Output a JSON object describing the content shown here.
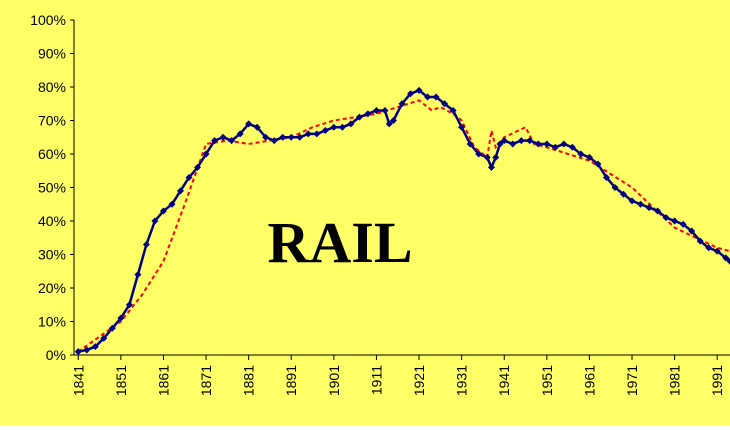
{
  "chart_data": {
    "type": "line",
    "annotation": "RAIL",
    "annotation_color": "#1aa39a",
    "background": "#ffff66",
    "xlim": [
      1840,
      1994
    ],
    "xticks": [
      1841,
      1851,
      1861,
      1871,
      1881,
      1891,
      1901,
      1911,
      1921,
      1931,
      1941,
      1951,
      1961,
      1971,
      1981,
      1991
    ],
    "ylim": [
      0,
      100
    ],
    "yticks": [
      {
        "value": 0,
        "label": "0%"
      },
      {
        "value": 10,
        "label": "10%"
      },
      {
        "value": 20,
        "label": "20%"
      },
      {
        "value": 30,
        "label": "30%"
      },
      {
        "value": 40,
        "label": "40%"
      },
      {
        "value": 50,
        "label": "50%"
      },
      {
        "value": 60,
        "label": "60%"
      },
      {
        "value": 70,
        "label": "70%"
      },
      {
        "value": 80,
        "label": "80%"
      },
      {
        "value": 90,
        "label": "90%"
      },
      {
        "value": 100,
        "label": "100%"
      }
    ],
    "grid": false,
    "series": [
      {
        "color": "#ff0000",
        "style": "dashed",
        "markers": false,
        "x": [
          1841,
          1851,
          1856,
          1861,
          1866,
          1871,
          1876,
          1881,
          1886,
          1891,
          1896,
          1901,
          1906,
          1911,
          1916,
          1921,
          1924,
          1926,
          1929,
          1931,
          1934,
          1937,
          1938,
          1939,
          1941,
          1946,
          1948,
          1951,
          1956,
          1961,
          1966,
          1971,
          1976,
          1981,
          1986,
          1991,
          1994
        ],
        "values": [
          1,
          10,
          18,
          28,
          45,
          63,
          64,
          63,
          64,
          65,
          68,
          70,
          71,
          72,
          74,
          76,
          73,
          74,
          72,
          70,
          62,
          59,
          67,
          62,
          65,
          68,
          63,
          62,
          60,
          58,
          54,
          50,
          44,
          38,
          35,
          32,
          31
        ]
      },
      {
        "color": "#000080",
        "style": "solid",
        "markers": true,
        "x": [
          1841,
          1843,
          1845,
          1847,
          1849,
          1851,
          1853,
          1855,
          1857,
          1859,
          1861,
          1863,
          1865,
          1867,
          1869,
          1871,
          1873,
          1875,
          1877,
          1879,
          1881,
          1883,
          1885,
          1887,
          1889,
          1891,
          1893,
          1895,
          1897,
          1899,
          1901,
          1903,
          1905,
          1907,
          1909,
          1911,
          1913,
          1914,
          1915,
          1917,
          1919,
          1921,
          1923,
          1925,
          1927,
          1929,
          1931,
          1933,
          1935,
          1937,
          1938,
          1939,
          1940,
          1941,
          1943,
          1945,
          1947,
          1949,
          1951,
          1953,
          1955,
          1957,
          1959,
          1961,
          1963,
          1965,
          1967,
          1969,
          1971,
          1973,
          1975,
          1977,
          1979,
          1981,
          1983,
          1985,
          1987,
          1989,
          1991,
          1993,
          1994
        ],
        "values": [
          1,
          1.5,
          2.5,
          5,
          8,
          11,
          15,
          24,
          33,
          40,
          43,
          45,
          49,
          53,
          56,
          60,
          64,
          65,
          64,
          66,
          69,
          68,
          65,
          64,
          65,
          65,
          65,
          66,
          66,
          67,
          68,
          68,
          69,
          71,
          72,
          73,
          73,
          69,
          70,
          75,
          78,
          79,
          77,
          77,
          75,
          73,
          68,
          63,
          60,
          59,
          56,
          59,
          63,
          64,
          63,
          64,
          64,
          63,
          63,
          62,
          63,
          62,
          60,
          59,
          57,
          53,
          50,
          48,
          46,
          45,
          44,
          43,
          41,
          40,
          39,
          37,
          34,
          32,
          31,
          29,
          28
        ]
      }
    ]
  }
}
